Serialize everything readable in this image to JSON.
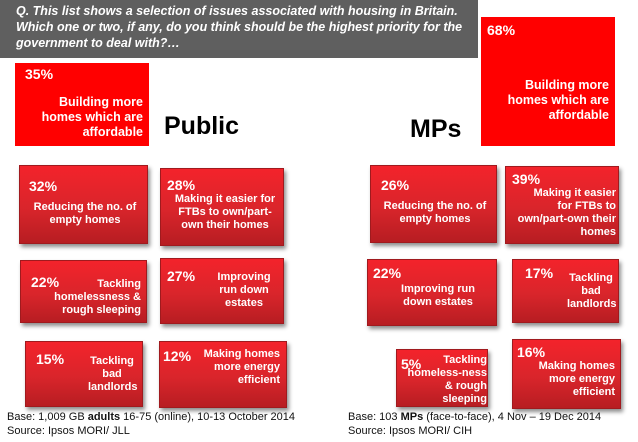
{
  "question": "Q. This list shows a selection of issues associated with housing in Britain. Which one or two, if any, do you think should be the highest priority for the government to deal with?…",
  "public": {
    "heading": "Public",
    "footer_base_pre": "Base: 1,009 GB ",
    "footer_base_bold": "adults",
    "footer_base_post": " 16-75 (online), 10-13 October 2014",
    "footer_source": "Source: Ipsos MORI/ JLL"
  },
  "mps": {
    "heading": "MPs",
    "footer_base_pre": "Base: 103 ",
    "footer_base_bold": "MPs",
    "footer_base_post": " (face-to-face), 4 Nov – 19 Dec 2014",
    "footer_source": "Source: Ipsos MORI/ CIH"
  },
  "colors": {
    "box_red": "#d9252b",
    "big_red": "#ff0000",
    "question_bg": "#5f5f5f"
  },
  "chart_data": [
    {
      "type": "table",
      "title": "Public",
      "unit": "%",
      "categories": [
        "Building more homes which are affordable",
        "Reducing the no. of empty homes",
        "Making it easier for FTBs to own/part-own their homes",
        "Tackling homelessness & rough sleeping",
        "Improving run down estates",
        "Tackling bad landlords",
        "Making homes more energy efficient"
      ],
      "values": [
        35,
        32,
        28,
        22,
        27,
        15,
        12
      ],
      "display": [
        "35%",
        "32%",
        "28%",
        "22%",
        "27%",
        "15%",
        "12%"
      ],
      "labels": [
        "Building more homes which are affordable",
        "Reducing the no. of empty homes",
        "Making it easier for FTBs to own/part-own their homes",
        "Tackling homelessness & rough sleeping",
        "Improving run down estates",
        "Tackling bad landlords",
        "Making homes more energy efficient"
      ]
    },
    {
      "type": "table",
      "title": "MPs",
      "unit": "%",
      "categories": [
        "Building more homes which are affordable",
        "Reducing the no. of empty homes",
        "Making it easier for FTBs to own/part-own their homes",
        "Improving run down estates",
        "Tackling bad landlords",
        "Tackling homelessness & rough sleeping",
        "Making homes more energy efficient"
      ],
      "values": [
        68,
        26,
        39,
        22,
        17,
        5,
        16
      ],
      "display": [
        "68%",
        "26%",
        "39%",
        "22%",
        "17%",
        "5%",
        "16%"
      ],
      "labels": [
        "Building more homes which are affordable",
        "Reducing the no. of empty homes",
        "Making it easier for FTBs to own/part-own their homes",
        "Improving run down estates",
        "Tackling bad landlords",
        "Tackling homeless-ness & rough sleeping",
        "Making homes more energy efficient"
      ]
    }
  ]
}
